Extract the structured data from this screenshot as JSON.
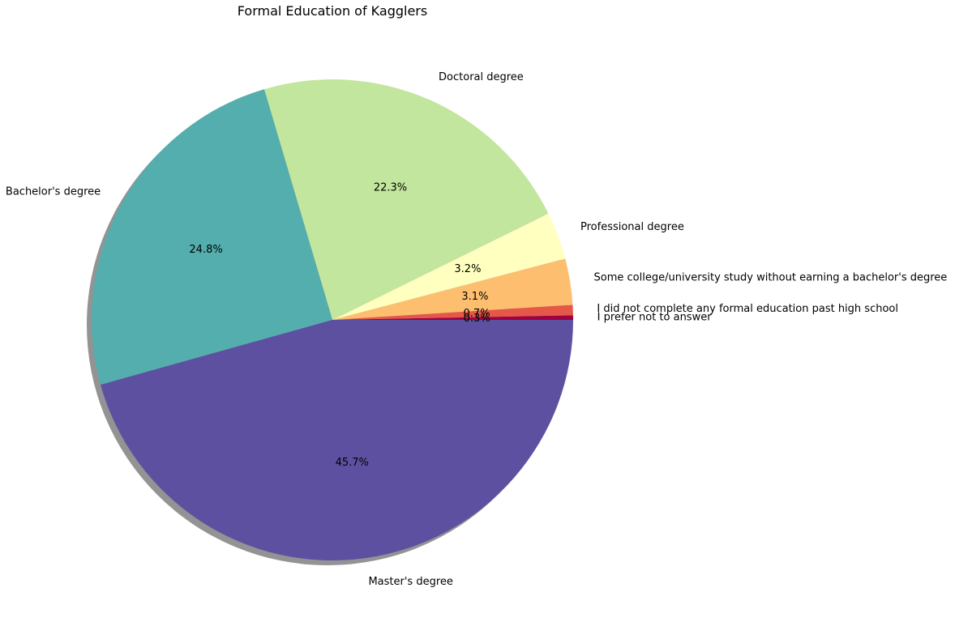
{
  "chart_data": {
    "type": "pie",
    "title": "Formal Education of Kagglers",
    "start_angle_deg": 0,
    "direction": "counterclockwise",
    "shadow": true,
    "slices": [
      {
        "label": "I prefer not to answer",
        "value": 0.3,
        "pct_label": "0.3%",
        "color": "#9e0142"
      },
      {
        "label": "I did not complete any formal education past high school",
        "value": 0.7,
        "pct_label": "0.7%",
        "color": "#e55749"
      },
      {
        "label": "Some college/university study without earning a bachelor's degree",
        "value": 3.1,
        "pct_label": "3.1%",
        "color": "#fdbf6f"
      },
      {
        "label": "Professional degree",
        "value": 3.2,
        "pct_label": "3.2%",
        "color": "#ffffbf"
      },
      {
        "label": "Doctoral degree",
        "value": 22.3,
        "pct_label": "22.3%",
        "color": "#c2e69d"
      },
      {
        "label": "Bachelor's degree",
        "value": 24.8,
        "pct_label": "24.8%",
        "color": "#54aeae"
      },
      {
        "label": "Master's degree",
        "value": 45.7,
        "pct_label": "45.7%",
        "color": "#5e50a1"
      }
    ]
  }
}
